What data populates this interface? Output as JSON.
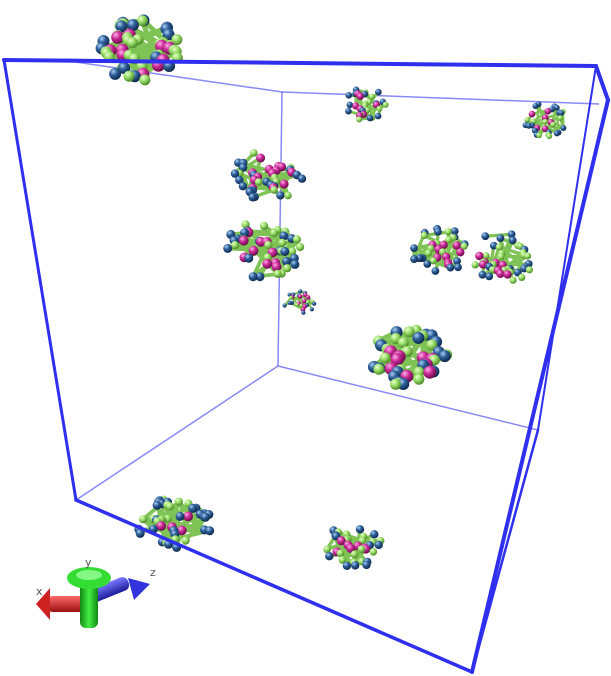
{
  "scene": {
    "background": "#ffffff",
    "box_color": "#3333ee",
    "atom_colors": {
      "carbon": "#9be06a",
      "oxygen": "#cc2c9a",
      "nitrogen": "#2f5f9a"
    }
  },
  "axes": {
    "x_color": "#dd2222",
    "y_color": "#22cc22",
    "z_color": "#3333ee",
    "labels": {
      "x": "x",
      "y": "y",
      "z": "z"
    }
  }
}
